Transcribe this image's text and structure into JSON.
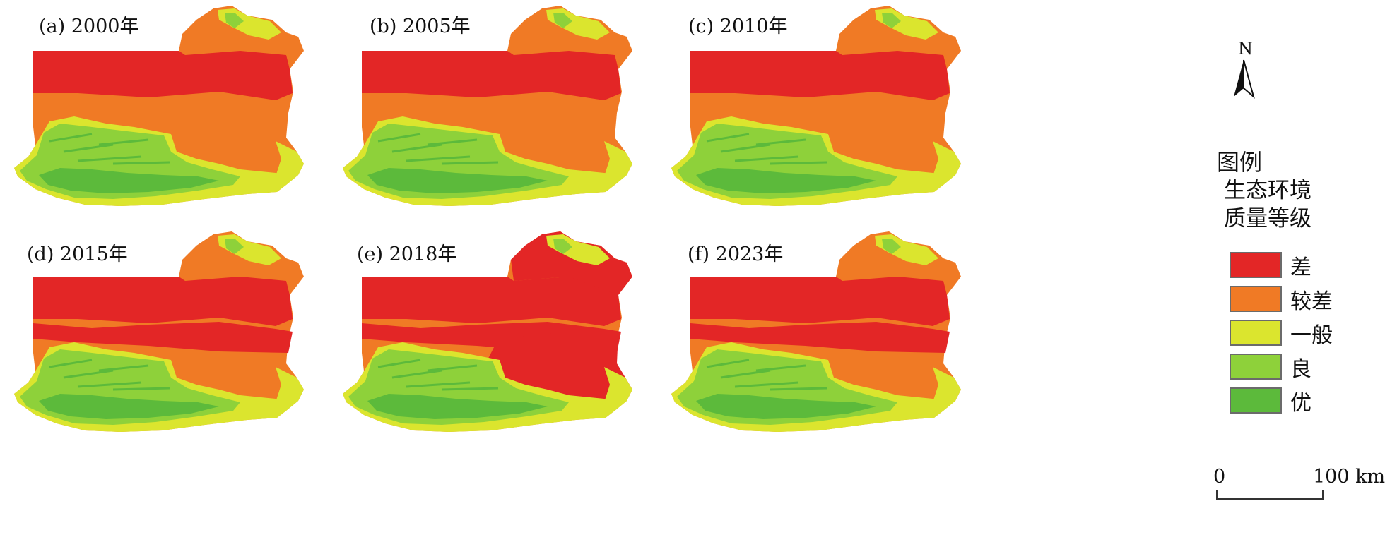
{
  "panels": [
    {
      "label": "(a) 2000年",
      "pattern": "low"
    },
    {
      "label": "(b) 2005年",
      "pattern": "low"
    },
    {
      "label": "(c) 2010年",
      "pattern": "low"
    },
    {
      "label": "(d) 2015年",
      "pattern": "mid"
    },
    {
      "label": "(e) 2018年",
      "pattern": "high"
    },
    {
      "label": "(f) 2023年",
      "pattern": "mid"
    }
  ],
  "legend": {
    "title": "图例",
    "subtitle_line1": "生态环境",
    "subtitle_line2": "质量等级",
    "items": [
      {
        "label": "差",
        "color": "#e32626"
      },
      {
        "label": "较差",
        "color": "#f07a25"
      },
      {
        "label": "一般",
        "color": "#dbe52e"
      },
      {
        "label": "良",
        "color": "#8ed13a"
      },
      {
        "label": "优",
        "color": "#5cba3b"
      }
    ]
  },
  "north_arrow": {
    "label": "N"
  },
  "scale_bar": {
    "start_label": "0",
    "end_label": "100 km"
  }
}
